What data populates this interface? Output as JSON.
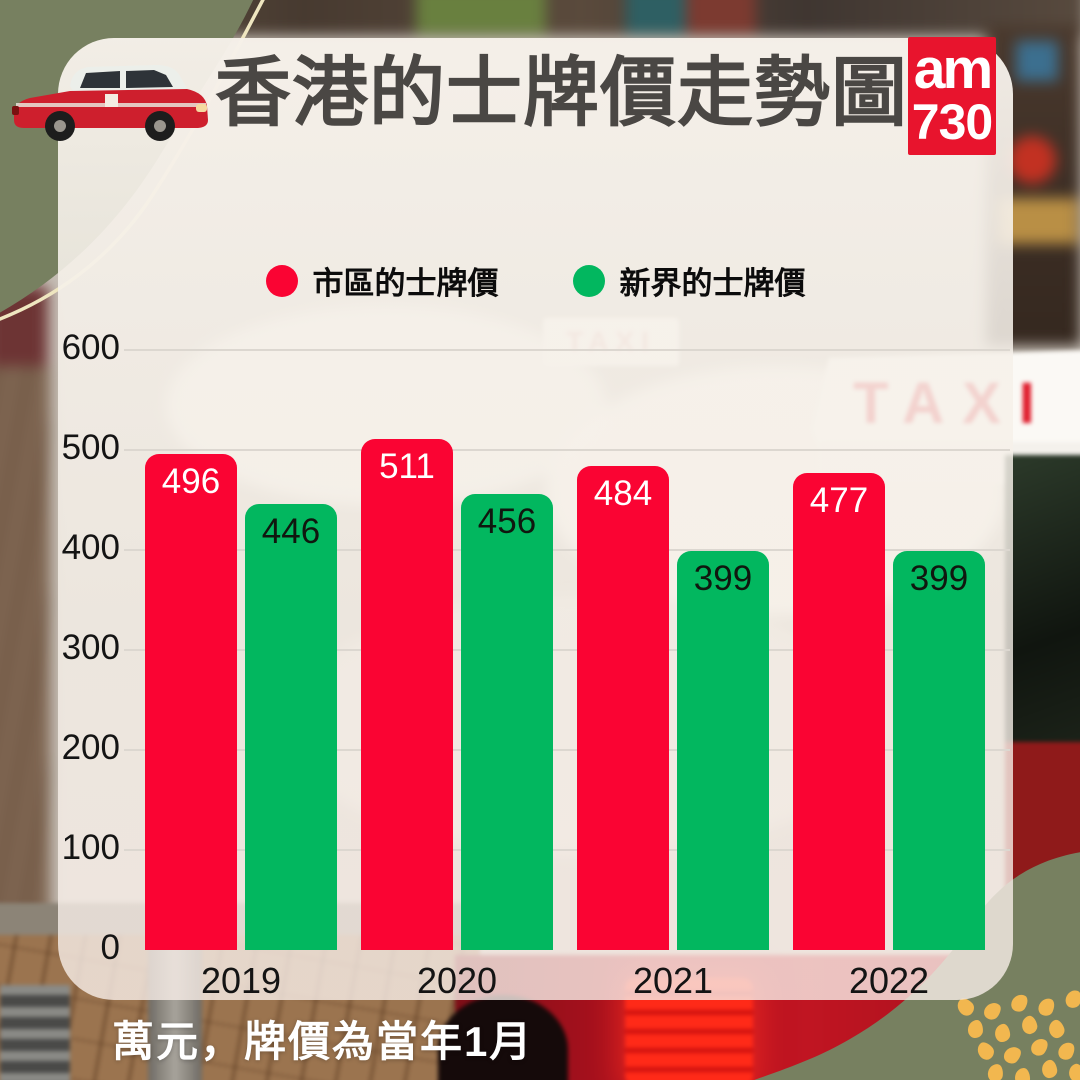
{
  "header": {
    "title": "香港的士牌價走勢圖",
    "logo": {
      "line1": "am",
      "line2": "730"
    }
  },
  "legend": {
    "items": [
      {
        "label": "市區的士牌價",
        "color": "#FA0433"
      },
      {
        "label": "新界的士牌價",
        "color": "#02B75F"
      }
    ]
  },
  "chart_data": {
    "type": "bar",
    "title": "香港的士牌價走勢圖",
    "categories": [
      "2019",
      "2020",
      "2021",
      "2022"
    ],
    "series": [
      {
        "name": "市區的士牌價",
        "color": "#FA0433",
        "label_color": "#FFFFFF",
        "values": [
          496,
          511,
          484,
          477
        ]
      },
      {
        "name": "新界的士牌價",
        "color": "#02B75F",
        "label_color": "#10170f",
        "values": [
          446,
          456,
          399,
          399
        ]
      }
    ],
    "ylim": [
      0,
      600
    ],
    "yticks": [
      600,
      500,
      400,
      300,
      200,
      100,
      0
    ],
    "grid": true,
    "legend_position": "top-center",
    "unit_note": "萬元，牌價為當年1月"
  },
  "footer": {
    "note": "萬元，牌價為當年1月"
  },
  "background": {
    "taxi_sign_text": "TAXI",
    "taxi_sign_faint_text": "TAXI"
  },
  "colors": {
    "accent_red": "#FA0433",
    "accent_green": "#02B75F",
    "olive": "#778060",
    "dot_orange": "#F2B74F",
    "logo_red": "#E8142D",
    "card": "#F4EFE8",
    "title_text": "#4A4744"
  }
}
